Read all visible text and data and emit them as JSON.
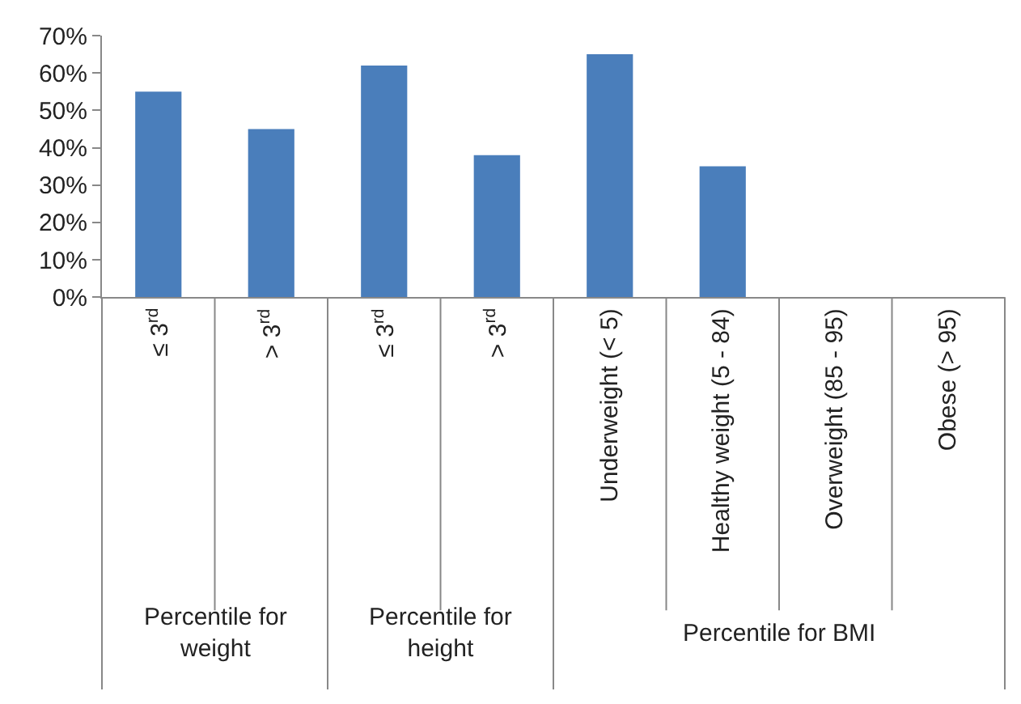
{
  "chart_data": {
    "type": "bar",
    "categories": [
      "≤ 3$^{rd}$",
      "> 3$^{rd}$",
      "≤ 3$^{rd}$",
      "> 3$^{rd}$",
      "Underweight (< 5)",
      "Healthy weight (5 - 84)",
      "Overweight (85 - 95)",
      "Obese (> 95)"
    ],
    "values": [
      55,
      45,
      62,
      38,
      65,
      35,
      0,
      0
    ],
    "color": "#4a7ebb",
    "ylim": [
      0,
      70
    ],
    "yticks": [
      {
        "value": 0,
        "label": "0%"
      },
      {
        "value": 10,
        "label": "10%"
      },
      {
        "value": 20,
        "label": "20%"
      },
      {
        "value": 30,
        "label": "30%"
      },
      {
        "value": 40,
        "label": "40%"
      },
      {
        "value": 50,
        "label": "50%"
      },
      {
        "value": 60,
        "label": "60%"
      },
      {
        "value": 70,
        "label": "70%"
      }
    ],
    "annotations": [
      "Percentile for weight",
      "Percentile for height",
      "Percentile for BMI"
    ]
  }
}
